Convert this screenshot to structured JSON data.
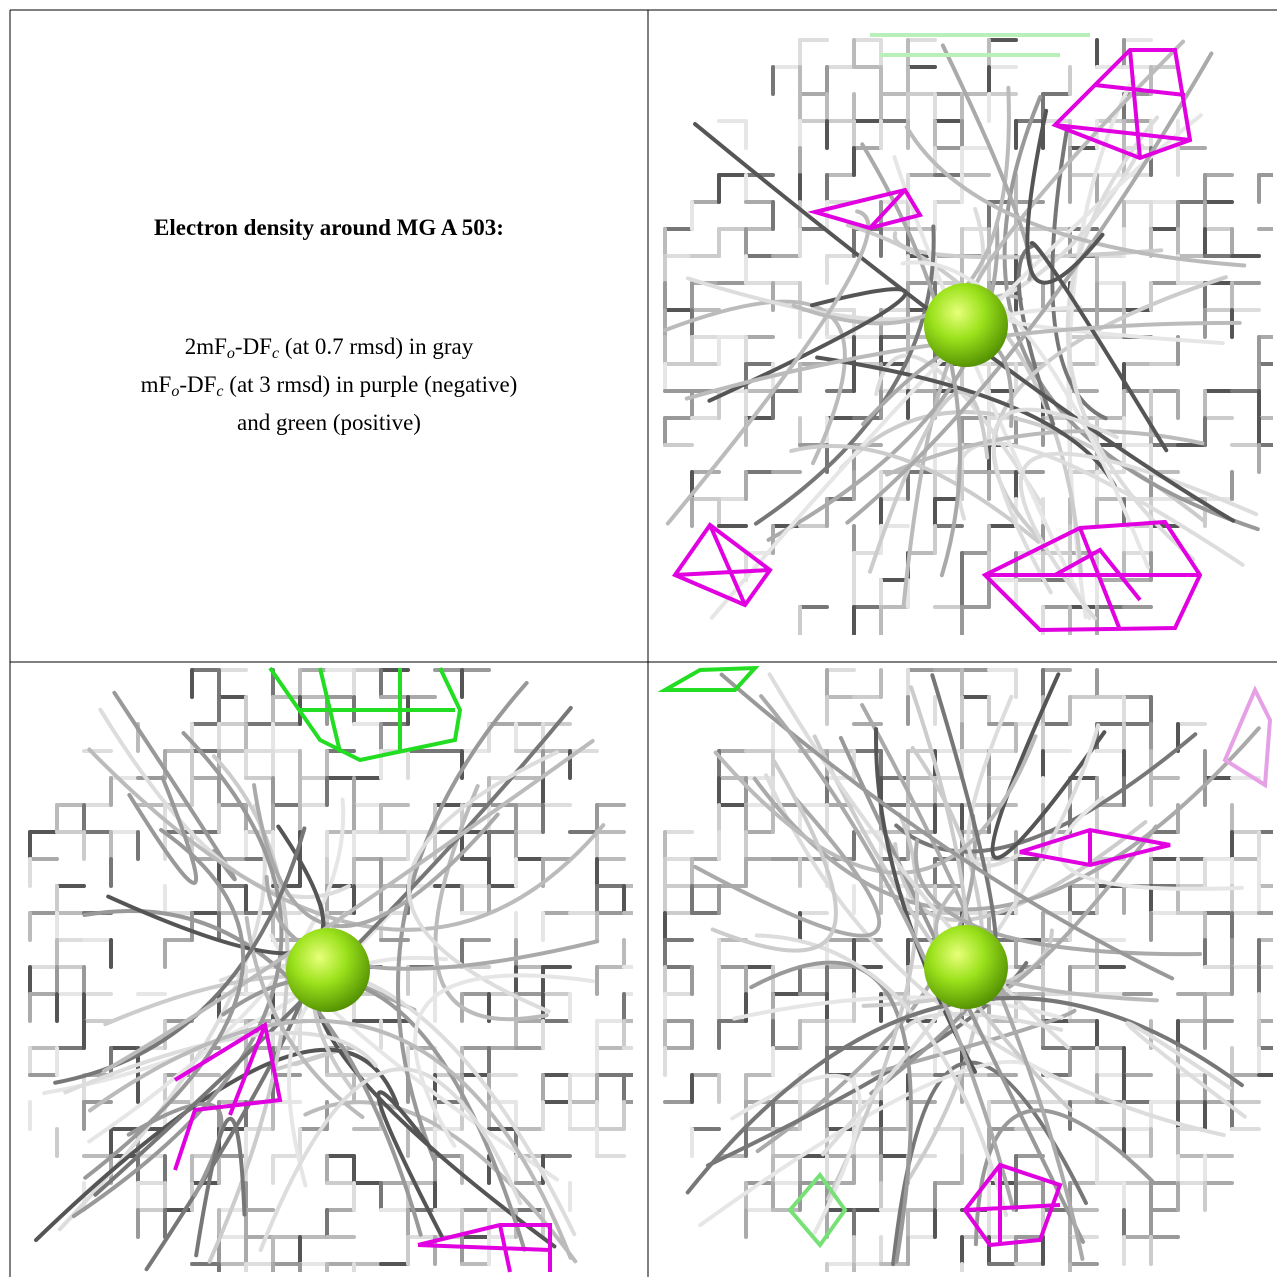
{
  "caption": {
    "title": "Electron density around MG A 503:",
    "lines": [
      [
        "2mF",
        "o",
        "-DF",
        "c",
        " (at 0.7 rmsd) in gray"
      ],
      [
        "mF",
        "o",
        "-DF",
        "c",
        " (at 3 rmsd) in purple (negative)"
      ],
      [
        "and green (positive)"
      ]
    ]
  }
}
